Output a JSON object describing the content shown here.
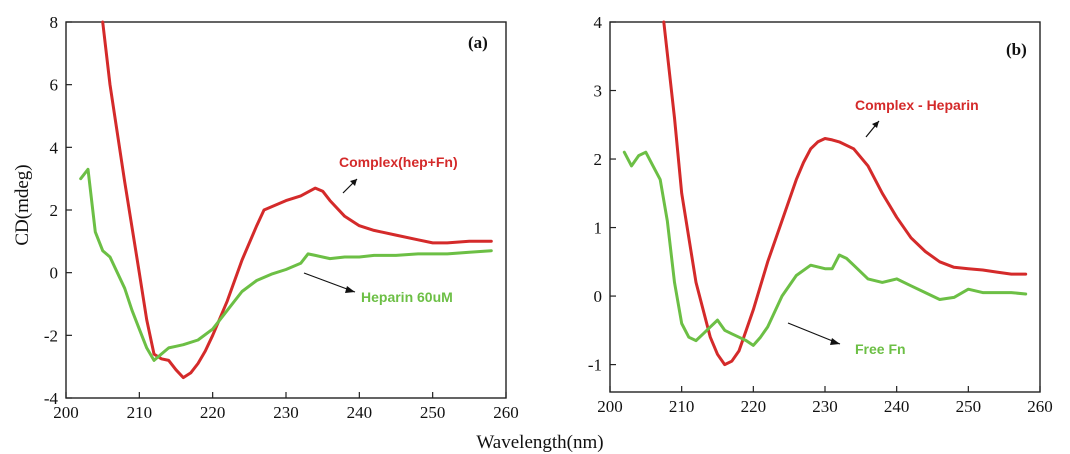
{
  "figure": {
    "ylabel": "CD(mdeg)",
    "xlabel": "Wavelength(nm)"
  },
  "chart_data": [
    {
      "type": "line",
      "panel_label": "(a)",
      "xlabel": "Wavelength(nm)",
      "ylabel": "CD(mdeg)",
      "xlim": [
        200,
        260
      ],
      "ylim": [
        -4,
        8
      ],
      "xticks": [
        200,
        210,
        220,
        230,
        240,
        250,
        260
      ],
      "yticks": [
        -4,
        -2,
        0,
        2,
        4,
        6,
        8
      ],
      "grid": false,
      "series": [
        {
          "name": "Complex(hep+Fn)",
          "color": "#d42a2a",
          "x": [
            205,
            206,
            208,
            210,
            211,
            212,
            213,
            214,
            215,
            216,
            217,
            218,
            219,
            220,
            222,
            224,
            226,
            227,
            228,
            230,
            232,
            234,
            235,
            236,
            238,
            240,
            242,
            245,
            248,
            250,
            252,
            255,
            258
          ],
          "y": [
            8.0,
            6.0,
            2.9,
            0.0,
            -1.5,
            -2.6,
            -2.75,
            -2.8,
            -3.1,
            -3.35,
            -3.2,
            -2.9,
            -2.5,
            -2.0,
            -0.9,
            0.4,
            1.5,
            2.0,
            2.1,
            2.3,
            2.45,
            2.7,
            2.6,
            2.3,
            1.8,
            1.5,
            1.35,
            1.2,
            1.05,
            0.95,
            0.95,
            1.0,
            1.0
          ]
        },
        {
          "name": "Heparin 60uM",
          "color": "#6cbf45",
          "x": [
            202,
            203,
            204,
            205,
            206,
            208,
            209,
            210,
            211,
            212,
            213,
            214,
            215,
            216,
            218,
            220,
            222,
            224,
            226,
            228,
            230,
            232,
            233,
            234,
            236,
            238,
            240,
            242,
            245,
            248,
            250,
            252,
            255,
            258
          ],
          "y": [
            3.0,
            3.3,
            1.3,
            0.7,
            0.5,
            -0.5,
            -1.2,
            -1.8,
            -2.4,
            -2.8,
            -2.6,
            -2.4,
            -2.35,
            -2.3,
            -2.15,
            -1.8,
            -1.2,
            -0.6,
            -0.25,
            -0.05,
            0.1,
            0.3,
            0.6,
            0.55,
            0.45,
            0.5,
            0.5,
            0.55,
            0.55,
            0.6,
            0.6,
            0.6,
            0.65,
            0.7
          ]
        }
      ],
      "annotations": [
        {
          "text": "Complex(hep+Fn)",
          "color": "#d42a2a"
        },
        {
          "text": "Heparin 60uM",
          "color": "#6cbf45"
        }
      ]
    },
    {
      "type": "line",
      "panel_label": "(b)",
      "xlabel": "Wavelength(nm)",
      "ylabel": "",
      "xlim": [
        200,
        260
      ],
      "ylim": [
        -1.4,
        4
      ],
      "xticks": [
        200,
        210,
        220,
        230,
        240,
        250,
        260
      ],
      "yticks": [
        -1,
        0,
        1,
        2,
        3,
        4
      ],
      "grid": false,
      "series": [
        {
          "name": "Complex - Heparin",
          "color": "#d42a2a",
          "x": [
            207.5,
            209,
            210,
            212,
            214,
            215,
            216,
            217,
            218,
            219,
            220,
            222,
            224,
            226,
            227,
            228,
            229,
            230,
            231,
            232,
            234,
            236,
            238,
            240,
            242,
            244,
            246,
            248,
            250,
            252,
            254,
            256,
            258
          ],
          "y": [
            4.0,
            2.6,
            1.5,
            0.2,
            -0.6,
            -0.85,
            -1.0,
            -0.95,
            -0.8,
            -0.5,
            -0.2,
            0.5,
            1.1,
            1.7,
            1.95,
            2.15,
            2.25,
            2.3,
            2.28,
            2.25,
            2.15,
            1.9,
            1.5,
            1.15,
            0.85,
            0.65,
            0.5,
            0.42,
            0.4,
            0.38,
            0.35,
            0.32,
            0.32
          ]
        },
        {
          "name": "Free Fn",
          "color": "#6cbf45",
          "x": [
            202,
            203,
            204,
            205,
            206,
            207,
            208,
            209,
            210,
            211,
            212,
            213,
            214,
            215,
            216,
            217,
            218,
            219,
            220,
            221,
            222,
            224,
            226,
            228,
            230,
            231,
            232,
            233,
            234,
            236,
            238,
            240,
            242,
            244,
            246,
            248,
            250,
            252,
            254,
            256,
            258
          ],
          "y": [
            2.1,
            1.9,
            2.05,
            2.1,
            1.9,
            1.7,
            1.1,
            0.2,
            -0.4,
            -0.6,
            -0.65,
            -0.55,
            -0.45,
            -0.35,
            -0.5,
            -0.55,
            -0.6,
            -0.65,
            -0.72,
            -0.6,
            -0.45,
            0.0,
            0.3,
            0.45,
            0.4,
            0.4,
            0.6,
            0.55,
            0.45,
            0.25,
            0.2,
            0.25,
            0.15,
            0.05,
            -0.05,
            -0.02,
            0.1,
            0.05,
            0.05,
            0.05,
            0.03
          ]
        }
      ],
      "annotations": [
        {
          "text": "Complex - Heparin",
          "color": "#d42a2a"
        },
        {
          "text": "Free Fn",
          "color": "#6cbf45"
        }
      ]
    }
  ]
}
